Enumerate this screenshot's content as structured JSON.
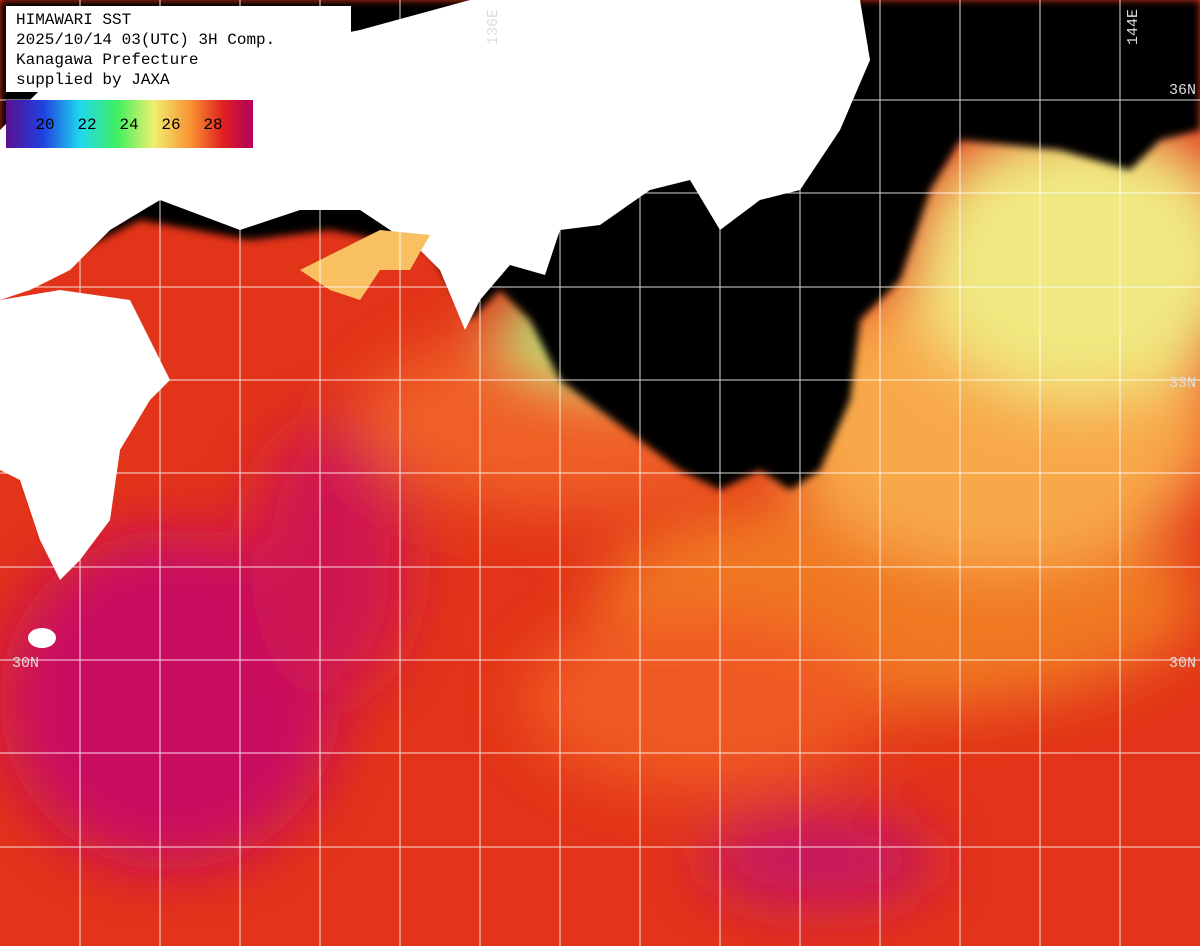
{
  "header": {
    "lines": [
      "HIMAWARI SST",
      "2025/10/14 03(UTC) 3H Comp.",
      "Kanagawa Prefecture",
      "supplied by JAXA"
    ]
  },
  "colorbar": {
    "labels": [
      "20",
      "22",
      "24",
      "26",
      "28"
    ]
  },
  "grid_labels": {
    "longitude": [
      "136E",
      "144E"
    ],
    "latitude_right": [
      "36N",
      "33N",
      "30N"
    ],
    "latitude_left": [
      "30N"
    ]
  }
}
